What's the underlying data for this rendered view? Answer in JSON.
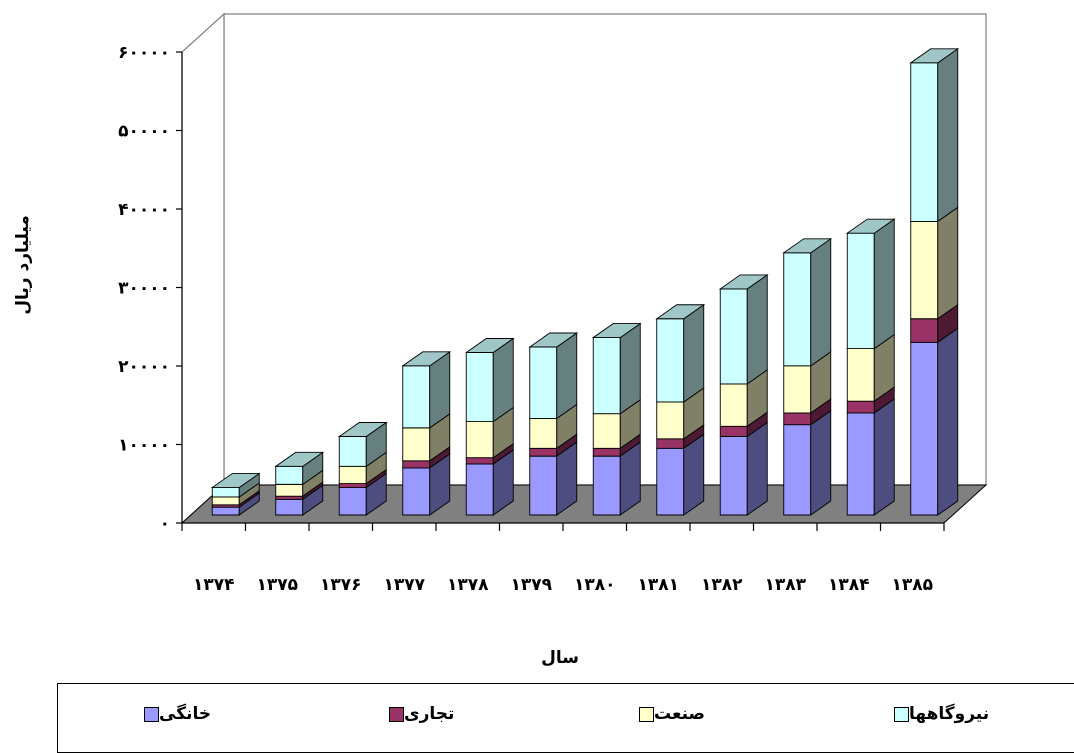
{
  "chart_data": {
    "type": "bar",
    "stacked": true,
    "three_d": true,
    "categories": [
      "۱۳۷۴",
      "۱۳۷۵",
      "۱۳۷۶",
      "۱۳۷۷",
      "۱۳۷۸",
      "۱۳۷۹",
      "۱۳۸۰",
      "۱۳۸۱",
      "۱۳۸۲",
      "۱۳۸۳",
      "۱۳۸۴",
      "۱۳۸۵"
    ],
    "series": [
      {
        "name": "خانگی",
        "color": "#9999ff",
        "values": [
          1000,
          2000,
          3500,
          6000,
          6500,
          7500,
          7500,
          8500,
          10000,
          11500,
          13000,
          22000
        ]
      },
      {
        "name": "تجاری",
        "color": "#993366",
        "values": [
          300,
          400,
          500,
          900,
          800,
          1000,
          1000,
          1200,
          1300,
          1500,
          1500,
          3000
        ]
      },
      {
        "name": "صنعت",
        "color": "#ffffcc",
        "values": [
          1000,
          1500,
          2200,
          4200,
          4600,
          3800,
          4400,
          4700,
          5400,
          6000,
          6700,
          12400
        ]
      },
      {
        "name": "نیروگاهها",
        "color": "#ccffff",
        "values": [
          1200,
          2300,
          3800,
          7900,
          8800,
          9100,
          9700,
          10600,
          12100,
          14400,
          14700,
          20200
        ]
      }
    ],
    "ylim": [
      0,
      60000
    ],
    "yticks": [
      0,
      10000,
      20000,
      30000,
      40000,
      50000,
      60000
    ],
    "ytick_labels": [
      "۰",
      "۱۰۰۰۰",
      "۲۰۰۰۰",
      "۳۰۰۰۰",
      "۴۰۰۰۰",
      "۵۰۰۰۰",
      "۶۰۰۰۰"
    ],
    "xlabel": "سال",
    "ylabel": "میلیارد ریال",
    "legend_position": "bottom",
    "floor_color": "#808080"
  },
  "legend": {
    "items": [
      {
        "label": "خانگی",
        "color": "#9999ff"
      },
      {
        "label": "تجاری",
        "color": "#993366"
      },
      {
        "label": "صنعت",
        "color": "#ffffcc"
      },
      {
        "label": "نیروگاهها",
        "color": "#ccffff"
      }
    ]
  }
}
